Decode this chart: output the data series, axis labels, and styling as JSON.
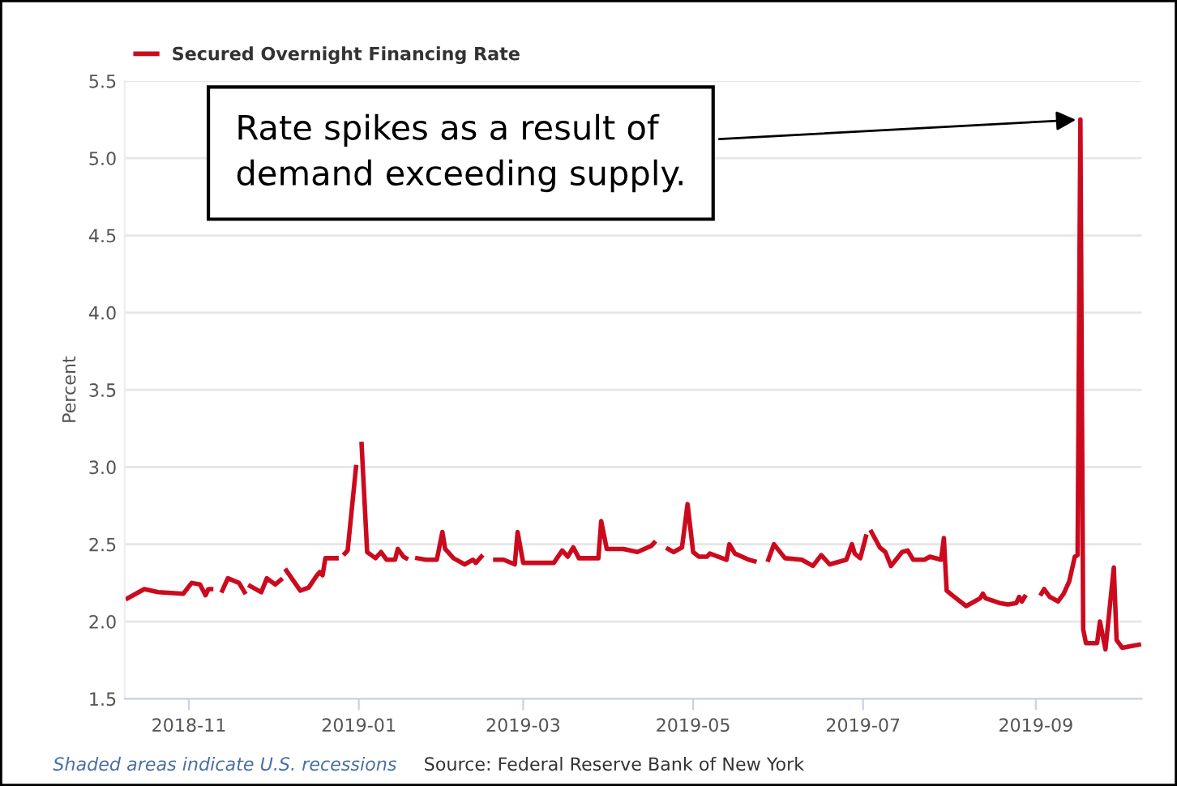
{
  "chart_data": {
    "type": "line",
    "xlabel": null,
    "ylabel": "Percent",
    "x": [
      "2018-10-10",
      "2018-10-16",
      "2018-10-21",
      "2018-10-30",
      "2018-11-02",
      "2018-11-05",
      "2018-11-07",
      "2018-11-08",
      "2018-11-09",
      null,
      "2018-11-13",
      "2018-11-15",
      "2018-11-19",
      "2018-11-21",
      null,
      "2018-11-23",
      "2018-11-27",
      "2018-11-29",
      "2018-12-02",
      "2018-12-04",
      null,
      "2018-12-06",
      "2018-12-11",
      "2018-12-14",
      "2018-12-17",
      "2018-12-18",
      "2018-12-19",
      "2018-12-20",
      "2018-12-24",
      null,
      "2018-12-27",
      "2018-12-28",
      "2018-12-31",
      null,
      "2019-01-02",
      "2019-01-04",
      "2019-01-07",
      "2019-01-09",
      "2019-01-11",
      "2019-01-14",
      "2019-01-15",
      "2019-01-17",
      "2019-01-18",
      null,
      "2019-01-22",
      "2019-01-25",
      "2019-01-29",
      "2019-01-31",
      "2019-02-01",
      "2019-02-04",
      "2019-02-08",
      "2019-02-11",
      "2019-02-12",
      "2019-02-14",
      null,
      "2019-02-19",
      "2019-02-22",
      "2019-02-26",
      "2019-02-27",
      "2019-03-01",
      "2019-03-08",
      "2019-03-12",
      "2019-03-15",
      "2019-03-17",
      "2019-03-19",
      "2019-03-21",
      "2019-03-28",
      "2019-03-29",
      "2019-03-31",
      "2019-04-06",
      "2019-04-11",
      "2019-04-16",
      "2019-04-17",
      null,
      "2019-04-22",
      "2019-04-24",
      "2019-04-27",
      "2019-04-29",
      "2019-05-01",
      "2019-05-03",
      "2019-05-06",
      "2019-05-07",
      "2019-05-13",
      "2019-05-14",
      "2019-05-16",
      "2019-05-21",
      "2019-05-23",
      null,
      "2019-05-28",
      "2019-05-30",
      "2019-06-03",
      "2019-06-09",
      "2019-06-13",
      "2019-06-16",
      "2019-06-19",
      "2019-06-25",
      "2019-06-27",
      "2019-06-28",
      "2019-06-30",
      "2019-07-02",
      null,
      "2019-07-04",
      "2019-07-07",
      "2019-07-09",
      "2019-07-11",
      "2019-07-15",
      "2019-07-17",
      "2019-07-19",
      "2019-07-23",
      "2019-07-25",
      "2019-07-29",
      "2019-07-30",
      "2019-07-31",
      "2019-08-02",
      "2019-08-07",
      "2019-08-10",
      "2019-08-12",
      "2019-08-13",
      "2019-08-14",
      "2019-08-19",
      "2019-08-22",
      "2019-08-25",
      "2019-08-26",
      "2019-08-27",
      "2019-08-28",
      null,
      "2019-09-03",
      "2019-09-04",
      "2019-09-06",
      "2019-09-09",
      "2019-09-11",
      "2019-09-13",
      "2019-09-15",
      "2019-09-16",
      "2019-09-17",
      "2019-09-18",
      "2019-09-19",
      "2019-09-23",
      "2019-09-24",
      "2019-09-26",
      "2019-09-29",
      "2019-09-30",
      "2019-10-02",
      "2019-10-05",
      "2019-10-08"
    ],
    "series": [
      {
        "name": "Secured Overnight Financing Rate",
        "color": "#cc0a1e",
        "values": [
          2.15,
          2.21,
          2.19,
          2.18,
          2.25,
          2.24,
          2.17,
          2.21,
          2.21,
          null,
          2.2,
          2.28,
          2.25,
          2.19,
          null,
          2.23,
          2.19,
          2.28,
          2.24,
          2.27,
          null,
          2.33,
          2.2,
          2.22,
          2.3,
          2.32,
          2.3,
          2.41,
          2.41,
          null,
          2.44,
          2.46,
          3.0,
          null,
          3.15,
          2.45,
          2.41,
          2.45,
          2.4,
          2.4,
          2.47,
          2.42,
          2.41,
          null,
          2.41,
          2.4,
          2.4,
          2.58,
          2.47,
          2.41,
          2.37,
          2.4,
          2.38,
          2.42,
          null,
          2.4,
          2.4,
          2.37,
          2.58,
          2.38,
          2.38,
          2.38,
          2.46,
          2.42,
          2.48,
          2.41,
          2.41,
          2.65,
          2.47,
          2.47,
          2.45,
          2.49,
          2.51,
          null,
          2.47,
          2.45,
          2.48,
          2.76,
          2.45,
          2.42,
          2.42,
          2.44,
          2.4,
          2.5,
          2.44,
          2.4,
          2.39,
          null,
          2.4,
          2.5,
          2.41,
          2.4,
          2.36,
          2.43,
          2.37,
          2.4,
          2.5,
          2.44,
          2.41,
          2.55,
          null,
          2.58,
          2.48,
          2.45,
          2.36,
          2.45,
          2.46,
          2.4,
          2.4,
          2.42,
          2.4,
          2.54,
          2.2,
          2.17,
          2.1,
          2.13,
          2.15,
          2.18,
          2.15,
          2.12,
          2.11,
          2.12,
          2.16,
          2.13,
          2.16,
          null,
          2.18,
          2.21,
          2.16,
          2.13,
          2.18,
          2.26,
          2.42,
          2.43,
          5.25,
          1.95,
          1.86,
          1.86,
          2.0,
          1.82,
          2.35,
          1.88,
          1.83,
          1.84,
          1.85
        ]
      }
    ],
    "xlim": [
      "2018-10-09",
      "2019-10-09"
    ],
    "xticks": [
      {
        "value": "2018-11-01",
        "label": "2018-11"
      },
      {
        "value": "2019-01-01",
        "label": "2019-01"
      },
      {
        "value": "2019-03-01",
        "label": "2019-03"
      },
      {
        "value": "2019-05-01",
        "label": "2019-05"
      },
      {
        "value": "2019-07-01",
        "label": "2019-07"
      },
      {
        "value": "2019-09-01",
        "label": "2019-09"
      }
    ],
    "ylim": [
      1.5,
      5.5
    ],
    "yticks": [
      {
        "value": 1.5,
        "label": "1.5"
      },
      {
        "value": 2.0,
        "label": "2.0"
      },
      {
        "value": 2.5,
        "label": "2.5"
      },
      {
        "value": 3.0,
        "label": "3.0"
      },
      {
        "value": 3.5,
        "label": "3.5"
      },
      {
        "value": 4.0,
        "label": "4.0"
      },
      {
        "value": 4.5,
        "label": "4.5"
      },
      {
        "value": 5.0,
        "label": "5.0"
      },
      {
        "value": 5.5,
        "label": "5.5"
      }
    ],
    "grid": "y",
    "legend": "top left",
    "marker": "none",
    "line_style": "solid",
    "annotations": [
      {
        "text": "Rate spikes as a result of\ndemand exceeding supply.",
        "x": "2019-09-17",
        "y": 5.25
      },
      "Shaded areas indicate U.S. recessions",
      "Source: Federal Reserve Bank of New York"
    ]
  }
}
